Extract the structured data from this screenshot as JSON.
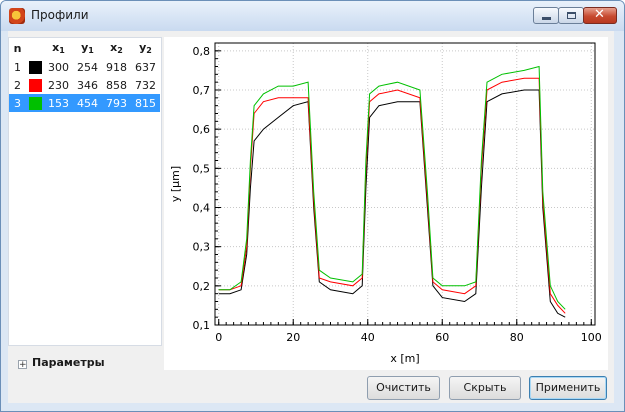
{
  "window": {
    "title": "Профили",
    "icon": "app-logo-icon"
  },
  "table": {
    "headers": {
      "n": "n",
      "x1": "x",
      "y1": "y",
      "x2": "x",
      "y2": "y",
      "sub1": "1",
      "sub2": "2"
    },
    "rows": [
      {
        "n": "1",
        "color": "#000000",
        "x1": "300",
        "y1": "254",
        "x2": "918",
        "y2": "637"
      },
      {
        "n": "2",
        "color": "#ff0000",
        "x1": "230",
        "y1": "346",
        "x2": "858",
        "y2": "732"
      },
      {
        "n": "3",
        "color": "#00c000",
        "x1": "153",
        "y1": "454",
        "x2": "793",
        "y2": "815"
      }
    ],
    "selected_row": 3
  },
  "params": {
    "label": "Параметры",
    "expander": "+"
  },
  "buttons": {
    "clear": "Очистить",
    "hide": "Скрыть",
    "apply": "Применить"
  },
  "chart_data": {
    "type": "line",
    "xlabel": "x [m]",
    "ylabel": "y [µm]",
    "xlim": [
      -1,
      101
    ],
    "ylim": [
      0.1,
      0.82
    ],
    "xticks": [
      0,
      20,
      40,
      60,
      80,
      100
    ],
    "yticks": [
      0.1,
      0.2,
      0.3,
      0.4,
      0.5,
      0.6,
      0.7,
      0.8
    ],
    "xtick_labels": [
      "0",
      "20",
      "40",
      "60",
      "80",
      "100"
    ],
    "ytick_labels": [
      "0,1",
      "0,2",
      "0,3",
      "0,4",
      "0,5",
      "0,6",
      "0,7",
      "0,8"
    ],
    "grid": true,
    "series": [
      {
        "color": "#000000",
        "x": [
          0,
          3,
          6,
          7.5,
          8.5,
          9.5,
          12,
          16,
          20,
          24,
          25.5,
          27,
          30,
          36,
          38.5,
          39.5,
          40.5,
          43,
          48,
          54,
          56,
          57.5,
          60,
          66,
          69,
          70.5,
          72,
          76,
          82,
          86,
          87,
          89,
          91,
          93
        ],
        "y": [
          0.18,
          0.18,
          0.19,
          0.28,
          0.45,
          0.57,
          0.6,
          0.63,
          0.66,
          0.67,
          0.4,
          0.21,
          0.19,
          0.18,
          0.2,
          0.45,
          0.63,
          0.66,
          0.67,
          0.67,
          0.4,
          0.2,
          0.17,
          0.16,
          0.18,
          0.45,
          0.67,
          0.69,
          0.7,
          0.7,
          0.4,
          0.16,
          0.13,
          0.12
        ]
      },
      {
        "color": "#ff0000",
        "x": [
          0,
          3,
          6,
          7.5,
          8.5,
          9.5,
          12,
          16,
          20,
          24,
          25.5,
          27,
          30,
          36,
          38.5,
          39.5,
          40.5,
          43,
          48,
          54,
          56,
          57.5,
          60,
          66,
          69,
          70.5,
          72,
          76,
          82,
          86,
          87,
          89,
          91,
          93
        ],
        "y": [
          0.19,
          0.19,
          0.2,
          0.3,
          0.5,
          0.64,
          0.67,
          0.68,
          0.68,
          0.68,
          0.42,
          0.22,
          0.21,
          0.2,
          0.22,
          0.5,
          0.67,
          0.69,
          0.7,
          0.68,
          0.42,
          0.21,
          0.19,
          0.18,
          0.2,
          0.5,
          0.7,
          0.72,
          0.73,
          0.73,
          0.42,
          0.18,
          0.15,
          0.13
        ]
      },
      {
        "color": "#00c000",
        "x": [
          0,
          3,
          6,
          7.5,
          8.5,
          9.5,
          12,
          16,
          20,
          24,
          25.5,
          27,
          30,
          36,
          38.5,
          39.5,
          40.5,
          43,
          48,
          54,
          56,
          57.5,
          60,
          66,
          69,
          70.5,
          72,
          76,
          82,
          86,
          87,
          89,
          91,
          93
        ],
        "y": [
          0.19,
          0.19,
          0.21,
          0.32,
          0.52,
          0.66,
          0.69,
          0.71,
          0.71,
          0.72,
          0.44,
          0.24,
          0.22,
          0.21,
          0.23,
          0.52,
          0.69,
          0.71,
          0.72,
          0.7,
          0.44,
          0.22,
          0.2,
          0.2,
          0.21,
          0.52,
          0.72,
          0.74,
          0.75,
          0.76,
          0.44,
          0.2,
          0.16,
          0.14
        ]
      }
    ]
  }
}
